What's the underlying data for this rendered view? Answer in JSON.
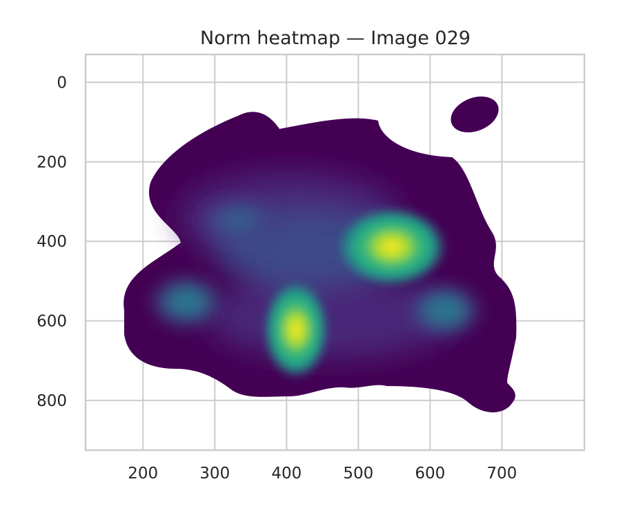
{
  "chart_data": {
    "type": "heatmap",
    "subtype": "kde-density",
    "title": "Norm heatmap — Image 029",
    "xlabel": "",
    "ylabel": "",
    "xlim": [
      120,
      815
    ],
    "ylim": [
      925,
      -70
    ],
    "y_inverted": true,
    "x_ticks": [
      200,
      300,
      400,
      500,
      600,
      700
    ],
    "y_ticks": [
      0,
      200,
      400,
      600,
      800
    ],
    "grid": true,
    "colormap": "viridis",
    "colormap_stops": [
      "#440154",
      "#482878",
      "#3e4989",
      "#31688e",
      "#26828e",
      "#1f9e89",
      "#35b779",
      "#6ece58",
      "#b5de2b",
      "#fde725"
    ],
    "density_peaks": [
      {
        "x": 485,
        "y": 415,
        "value": 1.0
      },
      {
        "x": 372,
        "y": 625,
        "value": 0.93
      },
      {
        "x": 245,
        "y": 555,
        "value": 0.42
      },
      {
        "x": 555,
        "y": 570,
        "value": 0.36
      },
      {
        "x": 330,
        "y": 330,
        "value": 0.35
      },
      {
        "x": 430,
        "y": 400,
        "value": 0.38
      },
      {
        "x": 585,
        "y": 80,
        "value": 0.02
      }
    ]
  }
}
